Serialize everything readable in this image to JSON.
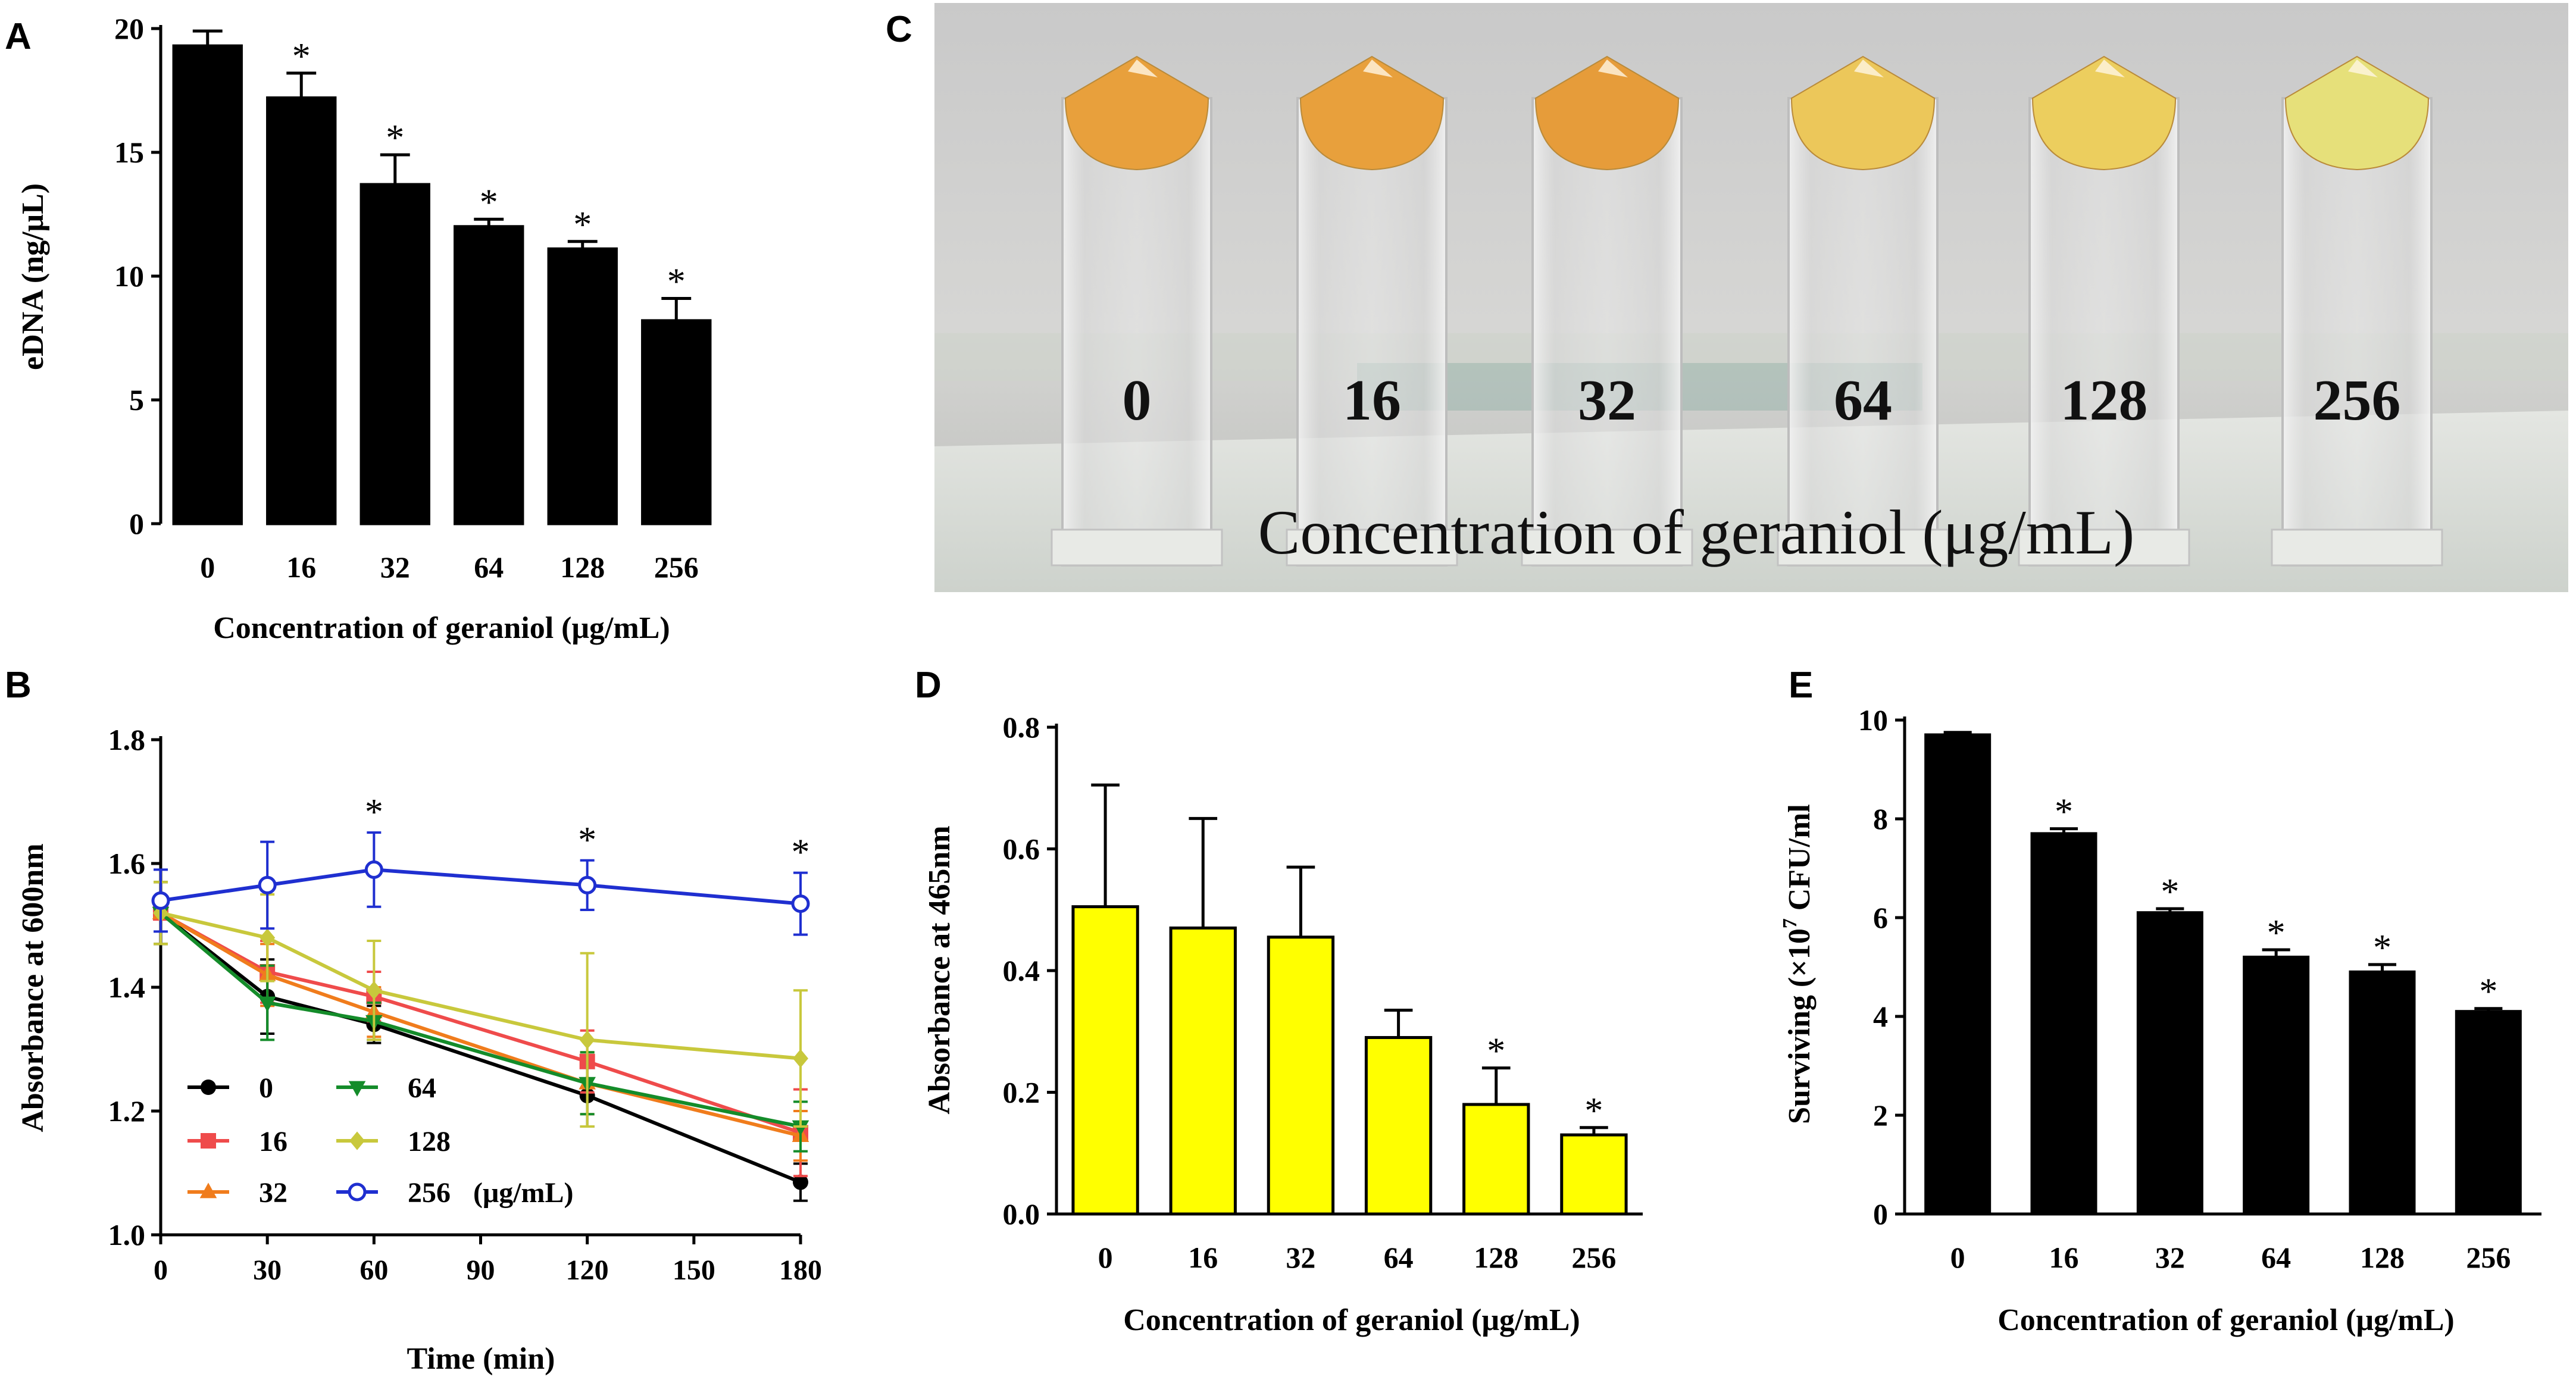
{
  "figure": {
    "panel_labels": {
      "A": "A",
      "B": "B",
      "C": "C",
      "D": "D",
      "E": "E"
    },
    "colors": {
      "bar_black": "#000000",
      "bar_yellow": "#ffff00",
      "series_0": "#000000",
      "series_16": "#ef4b4b",
      "series_32": "#f07c1c",
      "series_64": "#148c2a",
      "series_128": "#c8c83c",
      "series_256": "#1f2fd0"
    }
  },
  "chart_data": [
    {
      "panel": "A",
      "type": "bar",
      "ylabel": "eDNA (ng/μL)",
      "xlabel": "Concentration of geraniol (μg/mL)",
      "categories": [
        "0",
        "16",
        "32",
        "64",
        "128",
        "256"
      ],
      "values": [
        19.3,
        17.2,
        13.7,
        12.0,
        11.1,
        8.2
      ],
      "errors": [
        0.6,
        1.0,
        1.2,
        0.3,
        0.3,
        0.9
      ],
      "significance": [
        "",
        "*",
        "*",
        "*",
        "*",
        "*"
      ],
      "ylim": [
        0,
        20
      ],
      "yticks": [
        "0",
        "5",
        "10",
        "15",
        "20"
      ],
      "ytick_values": [
        0,
        5,
        10,
        15,
        20
      ]
    },
    {
      "panel": "B",
      "type": "line",
      "ylabel": "Absorbance at 600nm",
      "xlabel": "Time (min)",
      "x": [
        0,
        30,
        60,
        120,
        180
      ],
      "xlim": [
        0,
        180
      ],
      "xticks": [
        "0",
        "30",
        "60",
        "90",
        "120",
        "150",
        "180"
      ],
      "xtick_values": [
        0,
        30,
        60,
        90,
        120,
        150,
        180
      ],
      "ylim": [
        1.0,
        1.8
      ],
      "yticks": [
        "1.0",
        "1.2",
        "1.4",
        "1.6",
        "1.8"
      ],
      "ytick_values": [
        1.0,
        1.2,
        1.4,
        1.6,
        1.8
      ],
      "series": [
        {
          "name": "0",
          "key": "series_0",
          "marker": "circle",
          "values": [
            1.52,
            1.385,
            1.34,
            1.225,
            1.085
          ],
          "errors": [
            0.05,
            0.06,
            0.03,
            0.05,
            0.03
          ]
        },
        {
          "name": "16",
          "key": "series_16",
          "marker": "square",
          "values": [
            1.52,
            1.425,
            1.385,
            1.28,
            1.165
          ],
          "errors": [
            0.05,
            0.05,
            0.04,
            0.05,
            0.07
          ]
        },
        {
          "name": "32",
          "key": "series_32",
          "marker": "triangle-up",
          "values": [
            1.52,
            1.42,
            1.36,
            1.245,
            1.16
          ],
          "errors": [
            0.05,
            0.05,
            0.04,
            0.05,
            0.04
          ]
        },
        {
          "name": "64",
          "key": "series_64",
          "marker": "triangle-down",
          "values": [
            1.52,
            1.375,
            1.345,
            1.245,
            1.175
          ],
          "errors": [
            0.05,
            0.06,
            0.03,
            0.05,
            0.04
          ]
        },
        {
          "name": "128",
          "key": "series_128",
          "marker": "diamond",
          "values": [
            1.52,
            1.48,
            1.395,
            1.315,
            1.285
          ],
          "errors": [
            0.05,
            0.07,
            0.08,
            0.14,
            0.11
          ]
        },
        {
          "name": "256",
          "key": "series_256",
          "marker": "open-circle",
          "legend_suffix": " (μg/mL)",
          "values": [
            1.54,
            1.565,
            1.59,
            1.565,
            1.535
          ],
          "errors": [
            0.05,
            0.07,
            0.06,
            0.04,
            0.05
          ]
        }
      ],
      "annotations": [
        {
          "x": 60,
          "text": "*"
        },
        {
          "x": 120,
          "text": "*"
        },
        {
          "x": 180,
          "text": "*"
        }
      ]
    },
    {
      "panel": "C",
      "type": "photo",
      "labels": [
        "0",
        "16",
        "32",
        "64",
        "128",
        "256"
      ],
      "caption": "Concentration of geraniol (μg/mL)",
      "tube_colors": [
        "#e8a03c",
        "#e8a03c",
        "#e69c3a",
        "#ecc75a",
        "#ecce5e",
        "#e6e07a"
      ]
    },
    {
      "panel": "D",
      "type": "bar",
      "ylabel": "Absorbance at 465nm",
      "xlabel": "Concentration of geraniol (μg/mL)",
      "categories": [
        "0",
        "16",
        "32",
        "64",
        "128",
        "256"
      ],
      "values": [
        0.505,
        0.47,
        0.455,
        0.29,
        0.18,
        0.13
      ],
      "errors": [
        0.2,
        0.18,
        0.115,
        0.045,
        0.06,
        0.012
      ],
      "significance": [
        "",
        "",
        "",
        "",
        "*",
        "*"
      ],
      "ylim": [
        0,
        0.8
      ],
      "yticks": [
        "0.0",
        "0.2",
        "0.4",
        "0.6",
        "0.8"
      ],
      "ytick_values": [
        0,
        0.2,
        0.4,
        0.6,
        0.8
      ]
    },
    {
      "panel": "E",
      "type": "bar",
      "ylabel": "Surviving (×10",
      "ylabel_exp": "7",
      "ylabel_tail": " CFU/ml",
      "xlabel": "Concentration of geraniol (μg/mL)",
      "categories": [
        "0",
        "16",
        "32",
        "64",
        "128",
        "256"
      ],
      "values": [
        9.7,
        7.7,
        6.1,
        5.2,
        4.9,
        4.1
      ],
      "errors": [
        0.05,
        0.1,
        0.08,
        0.15,
        0.15,
        0.06
      ],
      "significance": [
        "",
        "*",
        "*",
        "*",
        "*",
        "*"
      ],
      "ylim": [
        0,
        10
      ],
      "yticks": [
        "0",
        "2",
        "4",
        "6",
        "8",
        "10"
      ],
      "ytick_values": [
        0,
        2,
        4,
        6,
        8,
        10
      ]
    }
  ]
}
